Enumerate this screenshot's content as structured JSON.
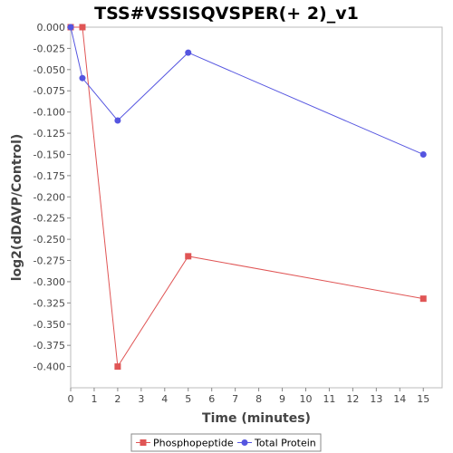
{
  "chart_data": {
    "type": "line",
    "title": "TSS#VSSISQVSPER(+ 2)_v1",
    "xlabel": "Time (minutes)",
    "ylabel": "log2(dDAVP/Control)",
    "xlim": [
      0,
      15.8
    ],
    "ylim": [
      -0.425,
      0.0
    ],
    "x_ticks": [
      0,
      1,
      2,
      3,
      4,
      5,
      6,
      7,
      8,
      9,
      10,
      11,
      12,
      13,
      14,
      15
    ],
    "y_ticks": [
      0.0,
      -0.025,
      -0.05,
      -0.075,
      -0.1,
      -0.125,
      -0.15,
      -0.175,
      -0.2,
      -0.225,
      -0.25,
      -0.275,
      -0.3,
      -0.325,
      -0.35,
      -0.375,
      -0.4
    ],
    "x_tick_labels": [
      "0",
      "1",
      "2",
      "3",
      "4",
      "5",
      "6",
      "7",
      "8",
      "9",
      "10",
      "11",
      "12",
      "13",
      "14",
      "15"
    ],
    "y_tick_labels": [
      "0.000",
      "-0.025",
      "-0.050",
      "-0.075",
      "-0.100",
      "-0.125",
      "-0.150",
      "-0.175",
      "-0.200",
      "-0.225",
      "-0.250",
      "-0.275",
      "-0.300",
      "-0.325",
      "-0.350",
      "-0.375",
      "-0.400"
    ],
    "grid": false,
    "legend_position": "bottom",
    "series": [
      {
        "name": "Phosphopeptide",
        "color": "#e05555",
        "marker": "square",
        "x": [
          0,
          0.5,
          2,
          5,
          15
        ],
        "y": [
          0.0,
          0.0,
          -0.4,
          -0.27,
          -0.32
        ]
      },
      {
        "name": "Total Protein",
        "color": "#5555e0",
        "marker": "circle",
        "x": [
          0,
          0.5,
          2,
          5,
          15
        ],
        "y": [
          0.0,
          -0.06,
          -0.11,
          -0.03,
          -0.15
        ]
      }
    ]
  }
}
